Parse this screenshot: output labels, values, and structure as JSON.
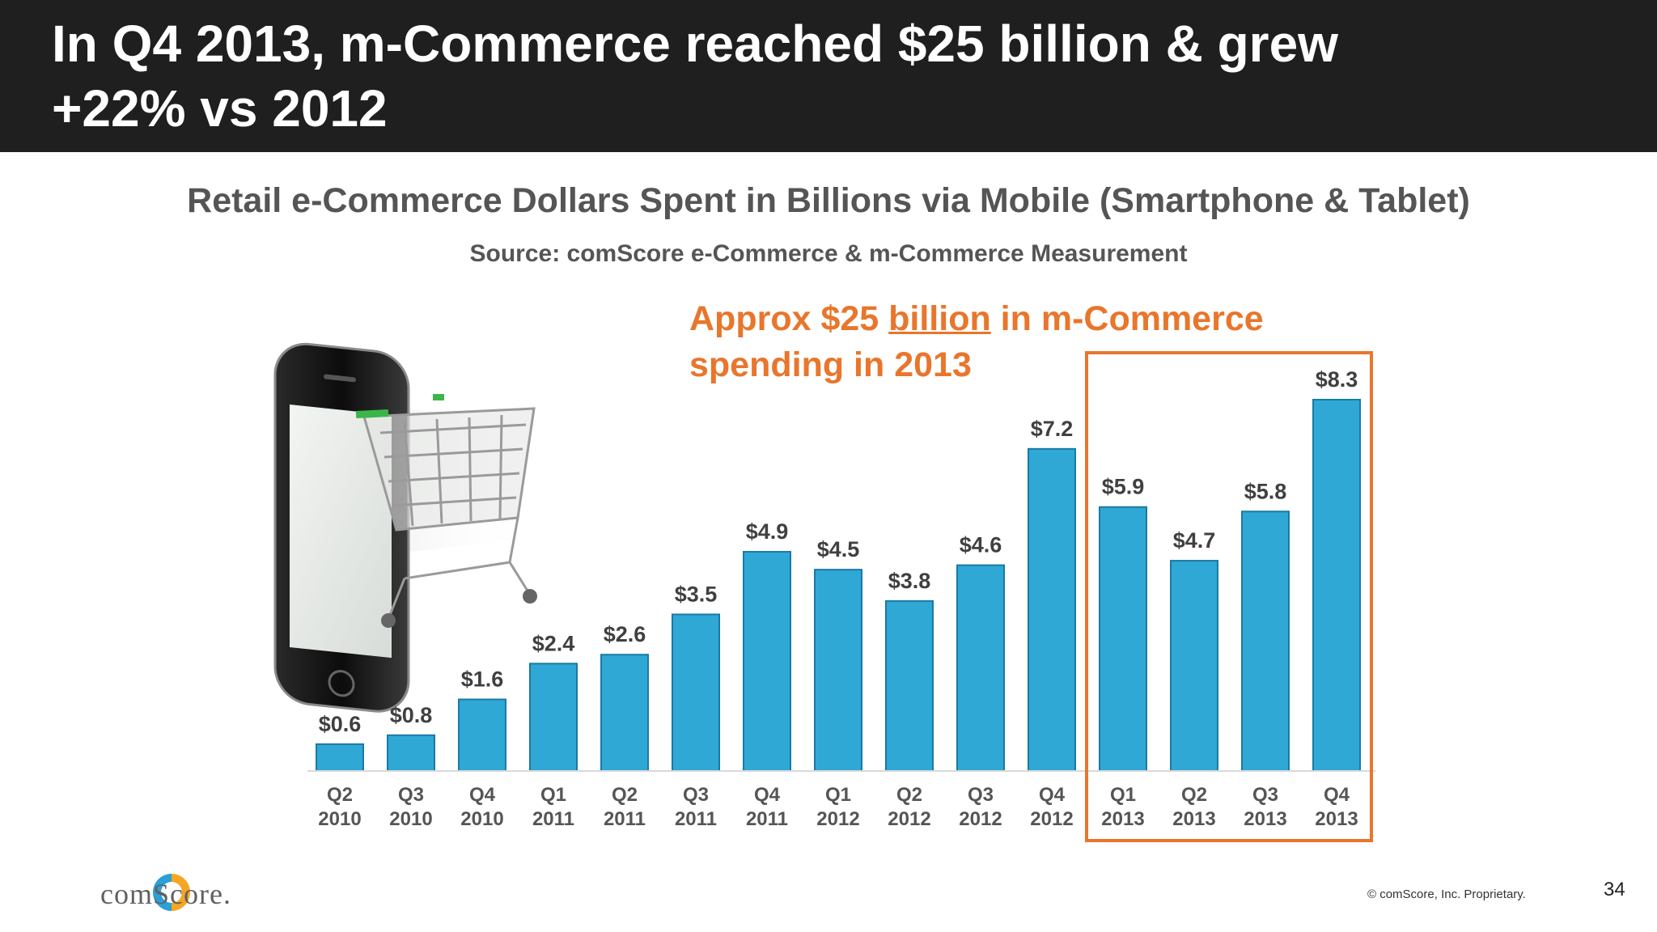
{
  "slide": {
    "title": "In Q4 2013, m-Commerce reached  $25 billion & grew\n+22% vs 2012",
    "callout_before": "Approx $25 ",
    "callout_underlined": "billion",
    "callout_after": " in m-Commerce",
    "callout_line2": "spending in 2013",
    "logo_text": "comScore.",
    "copyright": "© comScore, Inc. Proprietary.",
    "page_number": "34"
  },
  "chart_data": {
    "type": "bar",
    "title": "Retail e-Commerce Dollars Spent in Billions via Mobile (Smartphone & Tablet)",
    "subtitle": "Source: comScore e-Commerce & m-Commerce Measurement",
    "categories": [
      [
        "Q2",
        "2010"
      ],
      [
        "Q3",
        "2010"
      ],
      [
        "Q4",
        "2010"
      ],
      [
        "Q1",
        "2011"
      ],
      [
        "Q2",
        "2011"
      ],
      [
        "Q3",
        "2011"
      ],
      [
        "Q4",
        "2011"
      ],
      [
        "Q1",
        "2012"
      ],
      [
        "Q2",
        "2012"
      ],
      [
        "Q3",
        "2012"
      ],
      [
        "Q4",
        "2012"
      ],
      [
        "Q1",
        "2013"
      ],
      [
        "Q2",
        "2013"
      ],
      [
        "Q3",
        "2013"
      ],
      [
        "Q4",
        "2013"
      ]
    ],
    "values": [
      0.6,
      0.8,
      1.6,
      2.4,
      2.6,
      3.5,
      4.9,
      4.5,
      3.8,
      4.6,
      7.2,
      5.9,
      4.7,
      5.8,
      8.3
    ],
    "data_labels": [
      "$0.6",
      "$0.8",
      "$1.6",
      "$2.4",
      "$2.6",
      "$3.5",
      "$4.9",
      "$4.5",
      "$3.8",
      "$4.6",
      "$7.2",
      "$5.9",
      "$4.7",
      "$5.8",
      "$8.3"
    ],
    "ylim": [
      0,
      8.3
    ],
    "highlight_range": [
      11,
      14
    ],
    "colors": {
      "bar": "#2fa8d6",
      "bar_edge": "#1a7aa3",
      "highlight_box": "#e8762c",
      "label": "#404040"
    },
    "grid": false,
    "legend": "none"
  }
}
